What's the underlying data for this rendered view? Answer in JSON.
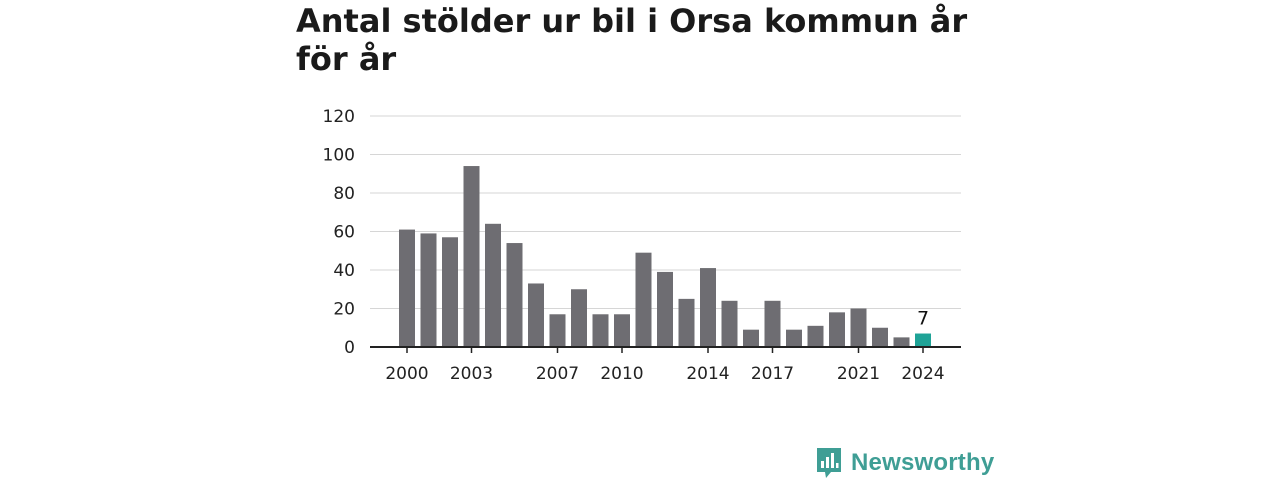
{
  "title": "Antal stölder ur bil i Orsa kommun år för år",
  "brand": "Newsworthy",
  "chart_data": {
    "type": "bar",
    "title": "Antal stölder ur bil i Orsa kommun år för år",
    "categories": [
      "2000",
      "2001",
      "2002",
      "2003",
      "2004",
      "2005",
      "2006",
      "2007",
      "2008",
      "2009",
      "2010",
      "2011",
      "2012",
      "2013",
      "2014",
      "2015",
      "2016",
      "2017",
      "2018",
      "2019",
      "2020",
      "2021",
      "2022",
      "2023",
      "2024"
    ],
    "values": [
      61,
      59,
      57,
      94,
      64,
      54,
      33,
      17,
      30,
      17,
      17,
      49,
      39,
      25,
      41,
      24,
      9,
      24,
      9,
      11,
      18,
      20,
      10,
      5,
      7
    ],
    "x_tick_labels": [
      "2000",
      "2003",
      "2007",
      "2010",
      "2014",
      "2017",
      "2021",
      "2024"
    ],
    "y_ticks": [
      0,
      20,
      40,
      60,
      80,
      100,
      120
    ],
    "ylim": [
      0,
      120
    ],
    "xlabel": "",
    "ylabel": "",
    "grid": true,
    "highlight_label": "7",
    "colors": {
      "bar": "#6e6d72",
      "highlight": "#1fa397",
      "grid": "#d6d6d6",
      "axis": "#222222",
      "brand": "#3f9e95"
    }
  }
}
